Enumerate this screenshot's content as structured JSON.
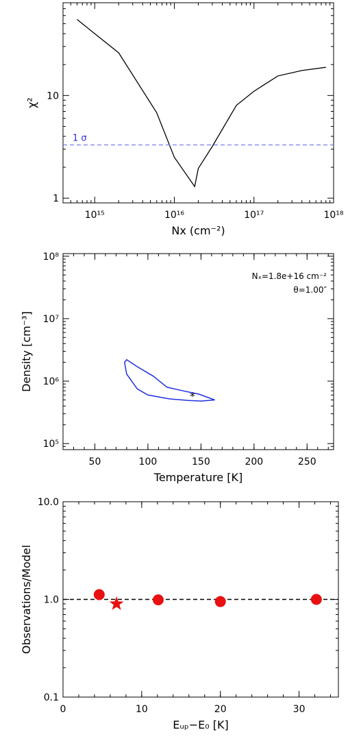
{
  "chart_data": [
    {
      "type": "line",
      "xlabel": "Nx (cm⁻²)",
      "ylabel": "χ²",
      "xscale": "log",
      "yscale": "log",
      "xlim": [
        400000000000000.0,
        1e+18
      ],
      "ylim": [
        0.9,
        80
      ],
      "xticks": [
        {
          "value": 1000000000000000.0,
          "label": "10¹⁵"
        },
        {
          "value": 1e+16,
          "label": "10¹⁶"
        },
        {
          "value": 1e+17,
          "label": "10¹⁷"
        },
        {
          "value": 1e+18,
          "label": "10¹⁸"
        }
      ],
      "yticks": [
        {
          "value": 1,
          "label": "1"
        },
        {
          "value": 10,
          "label": "10"
        }
      ],
      "series": [
        {
          "x": [
            600000000000000.0,
            1000000000000000.0,
            2000000000000000.0,
            6000000000000000.0,
            1e+16,
            1.8e+16,
            2e+16,
            3e+16,
            6e+16,
            1e+17,
            2e+17,
            4e+17,
            8e+17
          ],
          "y": [
            55,
            40,
            26,
            6.8,
            2.5,
            1.3,
            1.95,
            3.2,
            8,
            11,
            15.5,
            17.5,
            18.8
          ],
          "color": "#000000"
        }
      ],
      "hlines": [
        {
          "y": 3.3,
          "label": "1 σ",
          "color": "#6f6fef",
          "style": "dashed"
        }
      ]
    },
    {
      "type": "contour",
      "xlabel": "Temperature [K]",
      "ylabel": "Density [cm⁻³]",
      "xscale": "linear",
      "yscale": "log",
      "xlim": [
        20,
        275
      ],
      "ylim": [
        80000,
        110000000
      ],
      "xticks": [
        {
          "value": 50,
          "label": "50"
        },
        {
          "value": 100,
          "label": "100"
        },
        {
          "value": 150,
          "label": "150"
        },
        {
          "value": 200,
          "label": "200"
        },
        {
          "value": 250,
          "label": "250"
        }
      ],
      "yticks": [
        {
          "value": 100000,
          "label": "10⁵"
        },
        {
          "value": 1000000,
          "label": "10⁶"
        },
        {
          "value": 10000000,
          "label": "10⁷"
        },
        {
          "value": 100000000,
          "label": "10⁸"
        }
      ],
      "annotations": [
        {
          "text": "Nₓ=1.8e+16 cm⁻²"
        },
        {
          "text": "θ=1.00″"
        }
      ],
      "contour": {
        "x": [
          78,
          80,
          90,
          105,
          118,
          133,
          148,
          163,
          150,
          138,
          120,
          100,
          90,
          80,
          78
        ],
        "y": [
          2000000,
          2200000,
          1700000,
          1200000,
          800000,
          700000,
          620000,
          500000,
          480000,
          490000,
          520000,
          600000,
          750000,
          1300000,
          2000000
        ],
        "color": "#1f2fdf"
      },
      "best_fit": {
        "x": 142,
        "y": 580000,
        "color": "#e01010"
      }
    },
    {
      "type": "scatter",
      "xlabel": "Eᵤₚ−E₀ [K]",
      "ylabel": "Observations/Model",
      "xscale": "linear",
      "yscale": "log",
      "xlim": [
        0,
        35
      ],
      "ylim": [
        0.1,
        10
      ],
      "xticks": [
        {
          "value": 0,
          "label": "0"
        },
        {
          "value": 10,
          "label": "10"
        },
        {
          "value": 20,
          "label": "20"
        },
        {
          "value": 30,
          "label": "30"
        }
      ],
      "yticks": [
        {
          "value": 0.1,
          "label": "0.1"
        },
        {
          "value": 1,
          "label": "1.0"
        },
        {
          "value": 10,
          "label": "10.0"
        }
      ],
      "hline": {
        "y": 1.0,
        "style": "dashed",
        "color": "#000000"
      },
      "points": [
        {
          "x": 4.6,
          "y": 1.12,
          "marker": "circle"
        },
        {
          "x": 6.8,
          "y": 0.9,
          "marker": "star"
        },
        {
          "x": 12.1,
          "y": 0.99,
          "marker": "circle"
        },
        {
          "x": 20.0,
          "y": 0.95,
          "marker": "circle"
        },
        {
          "x": 32.2,
          "y": 1.0,
          "marker": "circle"
        }
      ],
      "color": "#e81010"
    }
  ]
}
